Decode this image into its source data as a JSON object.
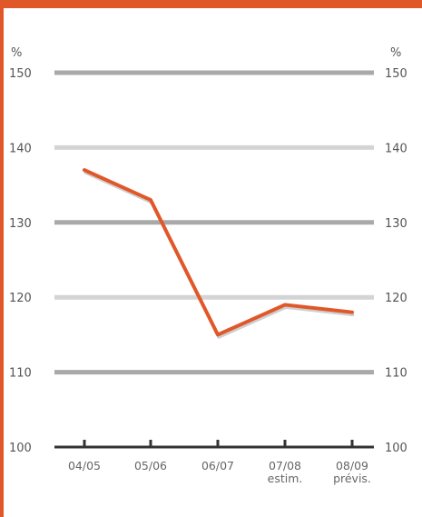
{
  "chart_data": {
    "type": "line",
    "title": "",
    "xlabel": "",
    "ylabel": "%",
    "ylabel_right": "%",
    "categories": [
      "04/05",
      "05/06",
      "06/07",
      "07/08\nestim.",
      "08/09\nprévis."
    ],
    "series": [
      {
        "values": [
          137,
          133,
          115,
          119,
          118
        ]
      }
    ],
    "ylim": [
      100,
      150
    ],
    "yticks": [
      100,
      110,
      120,
      130,
      140,
      150
    ],
    "grid": true,
    "legend": "none",
    "colors": {
      "line": "#e0582a",
      "frame": "#e0582a",
      "grid_dark": "#a9a9a9",
      "grid_light": "#d4d4d4",
      "axis": "#333333"
    }
  }
}
